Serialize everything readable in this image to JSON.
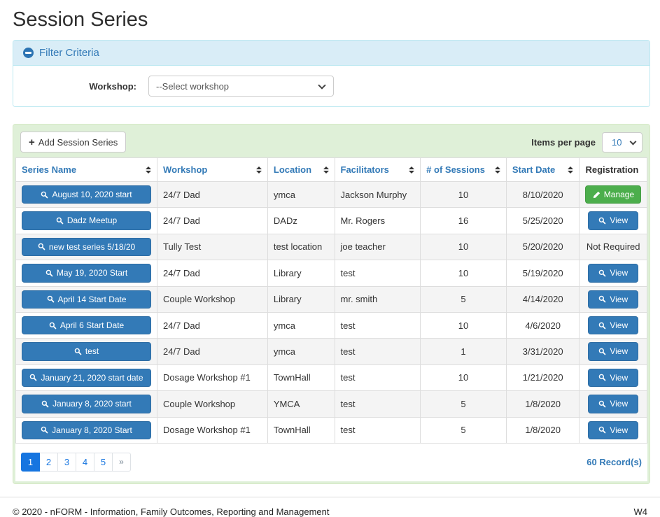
{
  "page": {
    "title": "Session Series"
  },
  "filter": {
    "heading": "Filter Criteria",
    "collapse_icon": "minus-circle-icon",
    "workshop_label": "Workshop:",
    "workshop_selected": "--Select workshop"
  },
  "toolbar": {
    "add_button_label": "Add Session Series",
    "add_button_icon": "plus-icon",
    "items_per_page_label": "Items per page",
    "items_per_page_value": "10"
  },
  "table": {
    "columns": [
      {
        "label": "Series Name",
        "sortable": true,
        "align": "l",
        "width": "22.4%"
      },
      {
        "label": "Workshop",
        "sortable": true,
        "align": "l",
        "width": "17.5%"
      },
      {
        "label": "Location",
        "sortable": true,
        "align": "l",
        "width": "10.6%"
      },
      {
        "label": "Facilitators",
        "sortable": true,
        "align": "l",
        "width": "13.6%"
      },
      {
        "label": "# of Sessions",
        "sortable": true,
        "align": "c",
        "width": "13.6%"
      },
      {
        "label": "Start Date",
        "sortable": true,
        "align": "c",
        "width": "11.6%"
      },
      {
        "label": "Registration",
        "sortable": false,
        "align": "c",
        "width": "10.7%"
      }
    ],
    "series_button_icon": "search-icon",
    "rows": [
      {
        "series_name": "August 10, 2020 start",
        "workshop": "24/7 Dad",
        "location": "ymca",
        "facilitators": "Jackson Murphy",
        "sessions": "10",
        "start_date": "8/10/2020",
        "registration": {
          "kind": "manage",
          "label": "Manage",
          "icon": "pencil-icon"
        }
      },
      {
        "series_name": "Dadz Meetup",
        "workshop": "24/7 Dad",
        "location": "DADz",
        "facilitators": "Mr. Rogers",
        "sessions": "16",
        "start_date": "5/25/2020",
        "registration": {
          "kind": "view",
          "label": "View",
          "icon": "search-icon"
        }
      },
      {
        "series_name": "new test series 5/18/20",
        "workshop": "Tully Test",
        "location": "test location",
        "facilitators": "joe teacher",
        "sessions": "10",
        "start_date": "5/20/2020",
        "registration": {
          "kind": "text",
          "label": "Not Required",
          "icon": null
        }
      },
      {
        "series_name": "May 19, 2020 Start",
        "workshop": "24/7 Dad",
        "location": "Library",
        "facilitators": "test",
        "sessions": "10",
        "start_date": "5/19/2020",
        "registration": {
          "kind": "view",
          "label": "View",
          "icon": "search-icon"
        }
      },
      {
        "series_name": "April 14 Start Date",
        "workshop": "Couple Workshop",
        "location": "Library",
        "facilitators": "mr. smith",
        "sessions": "5",
        "start_date": "4/14/2020",
        "registration": {
          "kind": "view",
          "label": "View",
          "icon": "search-icon"
        }
      },
      {
        "series_name": "April 6 Start Date",
        "workshop": "24/7 Dad",
        "location": "ymca",
        "facilitators": "test",
        "sessions": "10",
        "start_date": "4/6/2020",
        "registration": {
          "kind": "view",
          "label": "View",
          "icon": "search-icon"
        }
      },
      {
        "series_name": "test",
        "workshop": "24/7 Dad",
        "location": "ymca",
        "facilitators": "test",
        "sessions": "1",
        "start_date": "3/31/2020",
        "registration": {
          "kind": "view",
          "label": "View",
          "icon": "search-icon"
        }
      },
      {
        "series_name": "January 21, 2020 start date",
        "workshop": "Dosage Workshop #1",
        "location": "TownHall",
        "facilitators": "test",
        "sessions": "10",
        "start_date": "1/21/2020",
        "registration": {
          "kind": "view",
          "label": "View",
          "icon": "search-icon"
        }
      },
      {
        "series_name": "January 8, 2020 start",
        "workshop": "Couple Workshop",
        "location": "YMCA",
        "facilitators": "test",
        "sessions": "5",
        "start_date": "1/8/2020",
        "registration": {
          "kind": "view",
          "label": "View",
          "icon": "search-icon"
        }
      },
      {
        "series_name": "January 8, 2020 Start",
        "workshop": "Dosage Workshop #1",
        "location": "TownHall",
        "facilitators": "test",
        "sessions": "5",
        "start_date": "1/8/2020",
        "registration": {
          "kind": "view",
          "label": "View",
          "icon": "search-icon"
        }
      }
    ]
  },
  "pagination": {
    "pages": [
      "1",
      "2",
      "3",
      "4",
      "5",
      "»"
    ],
    "active_page": "1",
    "records_text": "60 Record(s)"
  },
  "footer": {
    "copyright": "© 2020 - nFORM - Information, Family Outcomes, Reporting and Management",
    "environment": "W4"
  },
  "colors": {
    "link_blue": "#337ab7",
    "button_blue": "#337ab7",
    "button_blue_border": "#2e6da4",
    "manage_green": "#4cae4c",
    "active_page_blue": "#1675e0",
    "filter_header_bg": "#d9edf7",
    "filter_border": "#bce8f1",
    "panel_green_bg": "#dff0d8",
    "panel_green_border": "#d6e9c6",
    "row_stripe": "#f4f4f4",
    "table_border": "#dddddd"
  }
}
